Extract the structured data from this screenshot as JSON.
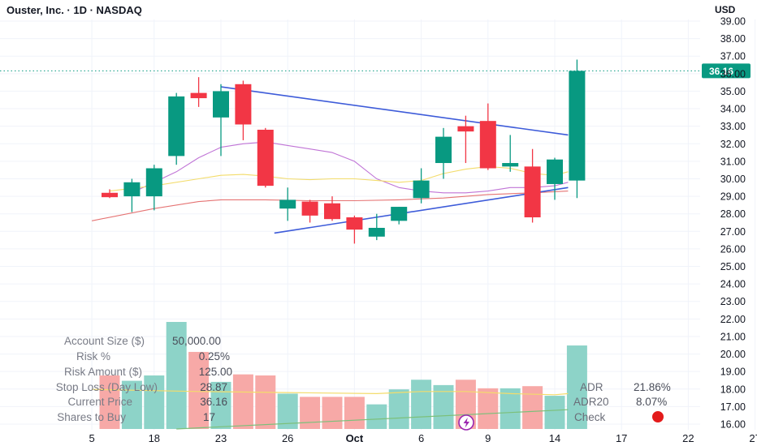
{
  "header": {
    "title": "Ouster, Inc. · 1D · NASDAQ",
    "currency": "USD"
  },
  "colors": {
    "up": "#089981",
    "down": "#f23645",
    "trend": "#3d5bd9",
    "ma_fast": "#c074d6",
    "ma_mid": "#f3dc6b",
    "ma_slow": "#e57373",
    "vol_ma": "#f3dc6b",
    "vol_trend": "#7cc07a"
  },
  "chart_data": {
    "type": "candlestick",
    "y_axis": {
      "min": 16,
      "max": 39,
      "ticks": [
        "16.00",
        "17.00",
        "18.00",
        "19.00",
        "20.00",
        "21.00",
        "22.00",
        "23.00",
        "24.00",
        "25.00",
        "26.00",
        "27.00",
        "28.00",
        "29.00",
        "30.00",
        "31.00",
        "32.00",
        "33.00",
        "34.00",
        "35.00",
        "36.00",
        "37.00",
        "38.00",
        "39.00"
      ]
    },
    "x_ticks": [
      {
        "label": "5",
        "index": -0.8
      },
      {
        "label": "18",
        "index": 2
      },
      {
        "label": "23",
        "index": 5
      },
      {
        "label": "26",
        "index": 8
      },
      {
        "label": "Oct",
        "index": 11,
        "bold": true
      },
      {
        "label": "6",
        "index": 14
      },
      {
        "label": "9",
        "index": 17
      },
      {
        "label": "14",
        "index": 20
      },
      {
        "label": "17",
        "index": 23
      },
      {
        "label": "22",
        "index": 26
      },
      {
        "label": "27",
        "index": 29
      }
    ],
    "candles": [
      {
        "o": 29.2,
        "h": 29.4,
        "l": 28.9,
        "c": 28.95,
        "v": 0.5
      },
      {
        "o": 29.0,
        "h": 30.0,
        "l": 28.1,
        "c": 29.8,
        "v": 0.45
      },
      {
        "o": 29.0,
        "h": 30.8,
        "l": 28.2,
        "c": 30.6,
        "v": 0.5
      },
      {
        "o": 31.3,
        "h": 34.9,
        "l": 30.8,
        "c": 34.7,
        "v": 1.0
      },
      {
        "o": 34.9,
        "h": 35.8,
        "l": 34.1,
        "c": 34.6,
        "v": 0.72
      },
      {
        "o": 33.5,
        "h": 35.4,
        "l": 31.3,
        "c": 35.0,
        "v": 0.44
      },
      {
        "o": 35.4,
        "h": 35.6,
        "l": 32.2,
        "c": 33.1,
        "v": 0.51
      },
      {
        "o": 32.8,
        "h": 32.9,
        "l": 29.5,
        "c": 29.6,
        "v": 0.5
      },
      {
        "o": 28.3,
        "h": 29.5,
        "l": 27.6,
        "c": 28.8,
        "v": 0.33
      },
      {
        "o": 28.7,
        "h": 28.8,
        "l": 27.5,
        "c": 27.9,
        "v": 0.3
      },
      {
        "o": 28.6,
        "h": 29.0,
        "l": 27.6,
        "c": 27.7,
        "v": 0.3
      },
      {
        "o": 27.8,
        "h": 27.9,
        "l": 26.3,
        "c": 27.1,
        "v": 0.3
      },
      {
        "o": 26.7,
        "h": 28.0,
        "l": 26.5,
        "c": 27.2,
        "v": 0.23
      },
      {
        "o": 27.6,
        "h": 28.4,
        "l": 27.4,
        "c": 28.4,
        "v": 0.37
      },
      {
        "o": 28.9,
        "h": 30.6,
        "l": 28.6,
        "c": 29.9,
        "v": 0.46
      },
      {
        "o": 30.9,
        "h": 32.9,
        "l": 30.0,
        "c": 32.4,
        "v": 0.41
      },
      {
        "o": 33.0,
        "h": 33.6,
        "l": 30.9,
        "c": 32.7,
        "v": 0.46
      },
      {
        "o": 33.3,
        "h": 34.3,
        "l": 30.5,
        "c": 30.6,
        "v": 0.38
      },
      {
        "o": 30.7,
        "h": 32.5,
        "l": 30.4,
        "c": 30.9,
        "v": 0.38
      },
      {
        "o": 30.7,
        "h": 31.7,
        "l": 27.5,
        "c": 27.8,
        "v": 0.4
      },
      {
        "o": 29.7,
        "h": 31.2,
        "l": 28.8,
        "c": 31.1,
        "v": 0.31
      },
      {
        "o": 29.9,
        "h": 36.8,
        "l": 28.9,
        "c": 36.16,
        "v": 0.78
      }
    ],
    "current_price": {
      "value": 36.16,
      "label": "36.16"
    },
    "trendlines": [
      {
        "from": [
          5,
          35.25
        ],
        "to": [
          20.6,
          32.5
        ]
      },
      {
        "from": [
          7.4,
          26.9
        ],
        "to": [
          20.6,
          29.5
        ]
      }
    ],
    "moving_averages": [
      {
        "name": "fast",
        "points": [
          [
            1,
            29.2
          ],
          [
            3,
            30.4
          ],
          [
            4,
            31.2
          ],
          [
            5,
            31.8
          ],
          [
            6,
            32.0
          ],
          [
            7,
            32.1
          ],
          [
            8,
            31.9
          ],
          [
            9,
            31.7
          ],
          [
            10,
            31.5
          ],
          [
            11,
            31.0
          ],
          [
            12,
            30.0
          ],
          [
            13,
            29.5
          ],
          [
            14,
            29.3
          ],
          [
            15,
            29.2
          ],
          [
            16,
            29.2
          ],
          [
            17,
            29.3
          ],
          [
            18,
            29.5
          ],
          [
            19,
            29.5
          ],
          [
            20,
            29.6
          ],
          [
            20.6,
            29.8
          ]
        ]
      },
      {
        "name": "mid",
        "points": [
          [
            0,
            29.3
          ],
          [
            2,
            29.6
          ],
          [
            4,
            30.0
          ],
          [
            5,
            30.2
          ],
          [
            6,
            30.25
          ],
          [
            7,
            30.15
          ],
          [
            8,
            30.0
          ],
          [
            9,
            29.95
          ],
          [
            10,
            30.0
          ],
          [
            11,
            30.0
          ],
          [
            12,
            29.9
          ],
          [
            13,
            29.8
          ],
          [
            14,
            29.9
          ],
          [
            15,
            30.3
          ],
          [
            16,
            30.55
          ],
          [
            17,
            30.7
          ],
          [
            18,
            30.6
          ],
          [
            19,
            30.3
          ],
          [
            20,
            30.2
          ],
          [
            20.6,
            30.4
          ]
        ]
      },
      {
        "name": "slow",
        "points": [
          [
            -0.8,
            27.6
          ],
          [
            2,
            28.3
          ],
          [
            4,
            28.7
          ],
          [
            5,
            28.8
          ],
          [
            7,
            28.8
          ],
          [
            9,
            28.75
          ],
          [
            11,
            28.75
          ],
          [
            13,
            28.8
          ],
          [
            15,
            28.9
          ],
          [
            17,
            29.1
          ],
          [
            19,
            29.2
          ],
          [
            20.6,
            29.3
          ]
        ]
      }
    ],
    "volume_ma": [
      [
        -0.8,
        0.37
      ],
      [
        4,
        0.35
      ],
      [
        8,
        0.34
      ],
      [
        12,
        0.33
      ],
      [
        14,
        0.35
      ],
      [
        16,
        0.35
      ],
      [
        18,
        0.33
      ],
      [
        20,
        0.32
      ],
      [
        20.6,
        0.33
      ]
    ],
    "volume_trend": [
      [
        3,
        0.0
      ],
      [
        20.6,
        0.18
      ]
    ]
  },
  "calculator": {
    "rows": [
      {
        "label": "Account Size ($)",
        "value": "50,000.00"
      },
      {
        "label": "Risk %",
        "value": "0.25%"
      },
      {
        "label": "Risk Amount ($)",
        "value": "125.00"
      },
      {
        "label": "Stop Loss (Day Low)",
        "value": "28.87"
      },
      {
        "label": "Current Price",
        "value": "36.16"
      },
      {
        "label": "Shares to Buy",
        "value": "17"
      }
    ]
  },
  "stats": {
    "rows": [
      {
        "label": "ADR",
        "value": "21.86%"
      },
      {
        "label": "ADR20",
        "value": "8.07%"
      },
      {
        "label": "Check",
        "value": ""
      }
    ],
    "check_color": "#e31b1b"
  }
}
